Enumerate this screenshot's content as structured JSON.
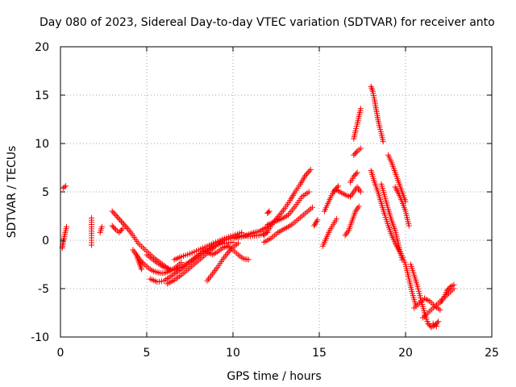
{
  "chart_data": {
    "type": "scatter",
    "title": "Day 080 of 2023, Sidereal Day-to-day VTEC variation (SDTVAR) for receiver anto",
    "xlabel": "GPS time / hours",
    "ylabel": "SDTVAR / TECUs",
    "xlim": [
      0,
      25
    ],
    "ylim": [
      -10,
      20
    ],
    "xticks": [
      "0",
      "5",
      "10",
      "15",
      "20",
      "25"
    ],
    "yticks": [
      "-10",
      "-5",
      "0",
      "5",
      "10",
      "15",
      "20"
    ],
    "grid": true,
    "marker": "+",
    "color": "#ff0000",
    "series": [
      {
        "name": "s1",
        "x": [
          0.15,
          0.3
        ],
        "y": [
          5.4,
          5.6
        ]
      },
      {
        "name": "s2",
        "x": [
          0.1,
          0.15,
          0.2,
          0.25,
          0.3,
          0.35
        ],
        "y": [
          -0.8,
          -0.3,
          0.2,
          0.6,
          1.0,
          1.4
        ]
      },
      {
        "name": "s3",
        "x": [
          1.8,
          1.8,
          1.8,
          1.8
        ],
        "y": [
          -0.5,
          0.0,
          0.5,
          2.3
        ]
      },
      {
        "name": "s4",
        "x": [
          2.3,
          2.4
        ],
        "y": [
          0.8,
          1.4
        ]
      },
      {
        "name": "s5",
        "x": [
          3.0,
          3.3,
          3.6,
          3.9,
          4.2,
          4.5,
          4.8,
          5.1,
          5.4,
          5.7,
          6.0,
          6.3
        ],
        "y": [
          3.0,
          2.4,
          1.8,
          1.2,
          0.5,
          -0.3,
          -0.8,
          -1.3,
          -1.8,
          -2.2,
          -2.6,
          -3.0
        ]
      },
      {
        "name": "s6",
        "x": [
          3.0,
          3.2,
          3.4,
          3.6
        ],
        "y": [
          1.5,
          1.1,
          0.8,
          1.2
        ]
      },
      {
        "name": "s7",
        "x": [
          4.2,
          4.4,
          4.6,
          4.8,
          5.0,
          5.2,
          5.4,
          5.6,
          5.8,
          6.0,
          6.2,
          6.4,
          6.6,
          6.8,
          7.0
        ],
        "y": [
          -1.0,
          -1.5,
          -2.0,
          -2.4,
          -2.7,
          -3.0,
          -3.2,
          -3.3,
          -3.4,
          -3.4,
          -3.3,
          -3.1,
          -2.9,
          -2.6,
          -2.3
        ]
      },
      {
        "name": "s8",
        "x": [
          4.4,
          4.5,
          4.6,
          4.7
        ],
        "y": [
          -1.5,
          -2.0,
          -2.5,
          -3.0
        ]
      },
      {
        "name": "s9",
        "x": [
          5.0,
          5.5,
          6.0,
          6.5,
          7.0,
          7.5,
          8.0,
          8.5,
          9.0,
          9.5,
          10.0
        ],
        "y": [
          -1.5,
          -2.2,
          -2.8,
          -3.1,
          -2.8,
          -2.2,
          -1.5,
          -0.9,
          -0.5,
          -0.3,
          -0.2
        ]
      },
      {
        "name": "s10",
        "x": [
          5.2,
          5.6,
          6.0,
          6.5,
          7.0,
          7.5,
          8.0,
          8.5,
          9.0,
          9.5,
          10.0,
          10.5,
          11.0,
          11.5,
          12.0
        ],
        "y": [
          -4.0,
          -4.3,
          -4.2,
          -3.6,
          -3.0,
          -2.3,
          -1.6,
          -1.0,
          -0.5,
          0.0,
          0.3,
          0.5,
          0.4,
          0.5,
          0.8
        ]
      },
      {
        "name": "s11",
        "x": [
          6.2,
          6.6,
          7.0,
          7.4,
          7.8,
          8.2,
          8.6,
          9.0
        ],
        "y": [
          -4.5,
          -4.1,
          -3.6,
          -3.0,
          -2.4,
          -1.8,
          -1.2,
          -0.6
        ]
      },
      {
        "name": "s12",
        "x": [
          6.6,
          7.0,
          7.5,
          8.0,
          8.5,
          9.0,
          9.5,
          10.0,
          10.5
        ],
        "y": [
          -2.0,
          -1.7,
          -1.4,
          -1.0,
          -0.6,
          -0.2,
          0.2,
          0.5,
          0.8
        ]
      },
      {
        "name": "s13",
        "x": [
          8.5,
          8.8,
          9.1,
          9.4,
          9.7,
          10.0,
          10.3
        ],
        "y": [
          -4.2,
          -3.5,
          -2.8,
          -2.0,
          -1.3,
          -0.7,
          -0.3
        ]
      },
      {
        "name": "s14",
        "x": [
          8.5,
          8.8,
          9.1,
          9.4,
          9.7,
          10.0,
          10.3,
          10.6,
          10.9
        ],
        "y": [
          -1.2,
          -1.5,
          -1.2,
          -0.8,
          -0.6,
          -1.0,
          -1.5,
          -1.9,
          -2.0
        ]
      },
      {
        "name": "s15",
        "x": [
          10.0,
          10.3,
          10.6,
          10.9,
          11.2,
          11.5,
          11.8,
          12.1
        ],
        "y": [
          0.2,
          0.3,
          0.4,
          0.6,
          0.8,
          0.9,
          1.2,
          1.5
        ]
      },
      {
        "name": "s16",
        "x": [
          11.8,
          12.1,
          12.4,
          12.7,
          13.0,
          13.3,
          13.6,
          13.9,
          14.2,
          14.5
        ],
        "y": [
          0.5,
          1.2,
          2.0,
          2.6,
          3.3,
          4.1,
          5.0,
          5.8,
          6.7,
          7.3
        ]
      },
      {
        "name": "s17",
        "x": [
          12.0,
          12.4,
          12.8,
          13.2,
          13.6,
          14.0,
          14.4
        ],
        "y": [
          1.6,
          1.9,
          2.2,
          2.6,
          3.5,
          4.5,
          5.0
        ]
      },
      {
        "name": "s18",
        "x": [
          11.8,
          12.2,
          12.6,
          13.0,
          13.4,
          13.8,
          14.2,
          14.6
        ],
        "y": [
          -0.2,
          0.2,
          0.8,
          1.2,
          1.6,
          2.2,
          2.8,
          3.4
        ]
      },
      {
        "name": "s19",
        "x": [
          12.0,
          12.1
        ],
        "y": [
          2.8,
          3.0
        ]
      },
      {
        "name": "s20",
        "x": [
          14.7,
          14.8,
          14.9
        ],
        "y": [
          1.5,
          1.8,
          2.1
        ]
      },
      {
        "name": "s21",
        "x": [
          15.2,
          15.4,
          15.6,
          15.8,
          16.0
        ],
        "y": [
          -0.6,
          0.2,
          1.0,
          1.6,
          2.2
        ]
      },
      {
        "name": "s22",
        "x": [
          15.3,
          15.5,
          15.7,
          15.9,
          16.1
        ],
        "y": [
          3.0,
          3.8,
          4.6,
          5.2,
          5.6
        ]
      },
      {
        "name": "s23",
        "x": [
          15.8,
          16.0,
          16.2,
          16.4,
          16.6,
          16.8,
          17.0,
          17.2,
          17.4
        ],
        "y": [
          5.0,
          5.2,
          5.0,
          4.8,
          4.6,
          4.5,
          5.0,
          5.5,
          5.0
        ]
      },
      {
        "name": "s24",
        "x": [
          16.5,
          16.7,
          16.9,
          17.1,
          17.3
        ],
        "y": [
          0.5,
          1.0,
          2.0,
          3.0,
          3.5
        ]
      },
      {
        "name": "s25",
        "x": [
          16.8,
          17.0,
          17.2
        ],
        "y": [
          6.0,
          6.6,
          7.0
        ]
      },
      {
        "name": "s26",
        "x": [
          17.0,
          17.2,
          17.4
        ],
        "y": [
          8.8,
          9.2,
          9.5
        ]
      },
      {
        "name": "s27",
        "x": [
          17.0,
          17.1,
          17.2,
          17.3,
          17.4
        ],
        "y": [
          10.5,
          11.3,
          12.0,
          12.8,
          13.6
        ]
      },
      {
        "name": "s28",
        "x": [
          18.0,
          18.1,
          18.2,
          18.3,
          18.4,
          18.5,
          18.6,
          18.7
        ],
        "y": [
          15.9,
          15.4,
          14.5,
          13.5,
          12.5,
          11.7,
          11.0,
          10.2
        ]
      },
      {
        "name": "s29",
        "x": [
          18.0,
          18.2,
          18.4,
          18.6,
          18.8,
          19.0,
          19.2,
          19.4,
          19.6,
          19.8,
          20.0,
          20.2,
          20.4,
          20.6
        ],
        "y": [
          7.2,
          6.0,
          5.0,
          3.8,
          2.6,
          1.5,
          0.5,
          -0.3,
          -1.0,
          -1.6,
          -2.5,
          -4.0,
          -5.5,
          -6.8
        ]
      },
      {
        "name": "s30",
        "x": [
          18.6,
          18.8,
          19.0,
          19.2,
          19.4,
          19.6,
          19.8
        ],
        "y": [
          5.8,
          4.5,
          3.2,
          2.0,
          1.0,
          -0.5,
          -2.0
        ]
      },
      {
        "name": "s31",
        "x": [
          19.0,
          19.2,
          19.4,
          19.6,
          19.8,
          20.0
        ],
        "y": [
          8.8,
          8.0,
          7.0,
          6.0,
          5.0,
          4.0
        ]
      },
      {
        "name": "s32",
        "x": [
          19.4,
          19.6,
          19.8,
          20.0,
          20.2
        ],
        "y": [
          5.5,
          4.8,
          4.0,
          3.0,
          1.5
        ]
      },
      {
        "name": "s33",
        "x": [
          20.3,
          20.5,
          20.7,
          20.9,
          21.1,
          21.3,
          21.5,
          21.7,
          21.9
        ],
        "y": [
          -2.5,
          -3.6,
          -4.8,
          -6.2,
          -7.5,
          -8.6,
          -9.0,
          -8.8,
          -8.4
        ]
      },
      {
        "name": "s34",
        "x": [
          20.5,
          20.8,
          21.1,
          21.4,
          21.7,
          22.0
        ],
        "y": [
          -7.0,
          -6.5,
          -6.0,
          -6.3,
          -6.8,
          -7.2
        ]
      },
      {
        "name": "s35",
        "x": [
          21.0,
          21.3,
          21.6,
          21.9,
          22.2,
          22.5,
          22.8
        ],
        "y": [
          -8.0,
          -7.5,
          -7.0,
          -6.5,
          -6.0,
          -5.5,
          -5.0
        ]
      },
      {
        "name": "s36",
        "x": [
          22.0,
          22.2,
          22.4,
          22.6,
          22.8
        ],
        "y": [
          -6.5,
          -6.0,
          -5.2,
          -4.8,
          -4.6
        ]
      },
      {
        "name": "s37",
        "x": [
          21.6,
          21.8
        ],
        "y": [
          -8.6,
          -8.9
        ]
      }
    ]
  }
}
